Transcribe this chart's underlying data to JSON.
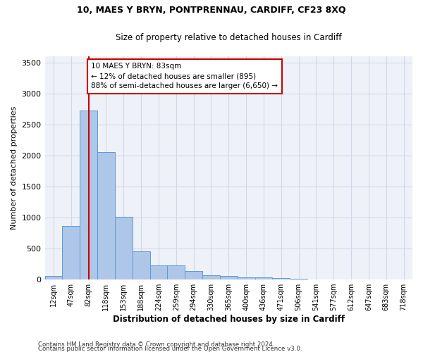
{
  "title_line1": "10, MAES Y BRYN, PONTPRENNAU, CARDIFF, CF23 8XQ",
  "title_line2": "Size of property relative to detached houses in Cardiff",
  "xlabel": "Distribution of detached houses by size in Cardiff",
  "ylabel": "Number of detached properties",
  "categories": [
    "12sqm",
    "47sqm",
    "82sqm",
    "118sqm",
    "153sqm",
    "188sqm",
    "224sqm",
    "259sqm",
    "294sqm",
    "330sqm",
    "365sqm",
    "400sqm",
    "436sqm",
    "471sqm",
    "506sqm",
    "541sqm",
    "577sqm",
    "612sqm",
    "647sqm",
    "683sqm",
    "718sqm"
  ],
  "values": [
    60,
    860,
    2720,
    2050,
    1010,
    455,
    230,
    230,
    135,
    65,
    60,
    40,
    30,
    25,
    10,
    0,
    0,
    0,
    0,
    0,
    0
  ],
  "bar_color": "#aec6e8",
  "bar_edge_color": "#5b9bd5",
  "vline_x_index": 2,
  "vline_color": "#cc0000",
  "annotation_line1": "10 MAES Y BRYN: 83sqm",
  "annotation_line2": "← 12% of detached houses are smaller (895)",
  "annotation_line3": "88% of semi-detached houses are larger (6,650) →",
  "annotation_box_color": "#cc0000",
  "ylim": [
    0,
    3600
  ],
  "yticks": [
    0,
    500,
    1000,
    1500,
    2000,
    2500,
    3000,
    3500
  ],
  "grid_color": "#d0d8e8",
  "bg_color": "#eef2f8",
  "footnote1": "Contains HM Land Registry data © Crown copyright and database right 2024.",
  "footnote2": "Contains public sector information licensed under the Open Government Licence v3.0."
}
